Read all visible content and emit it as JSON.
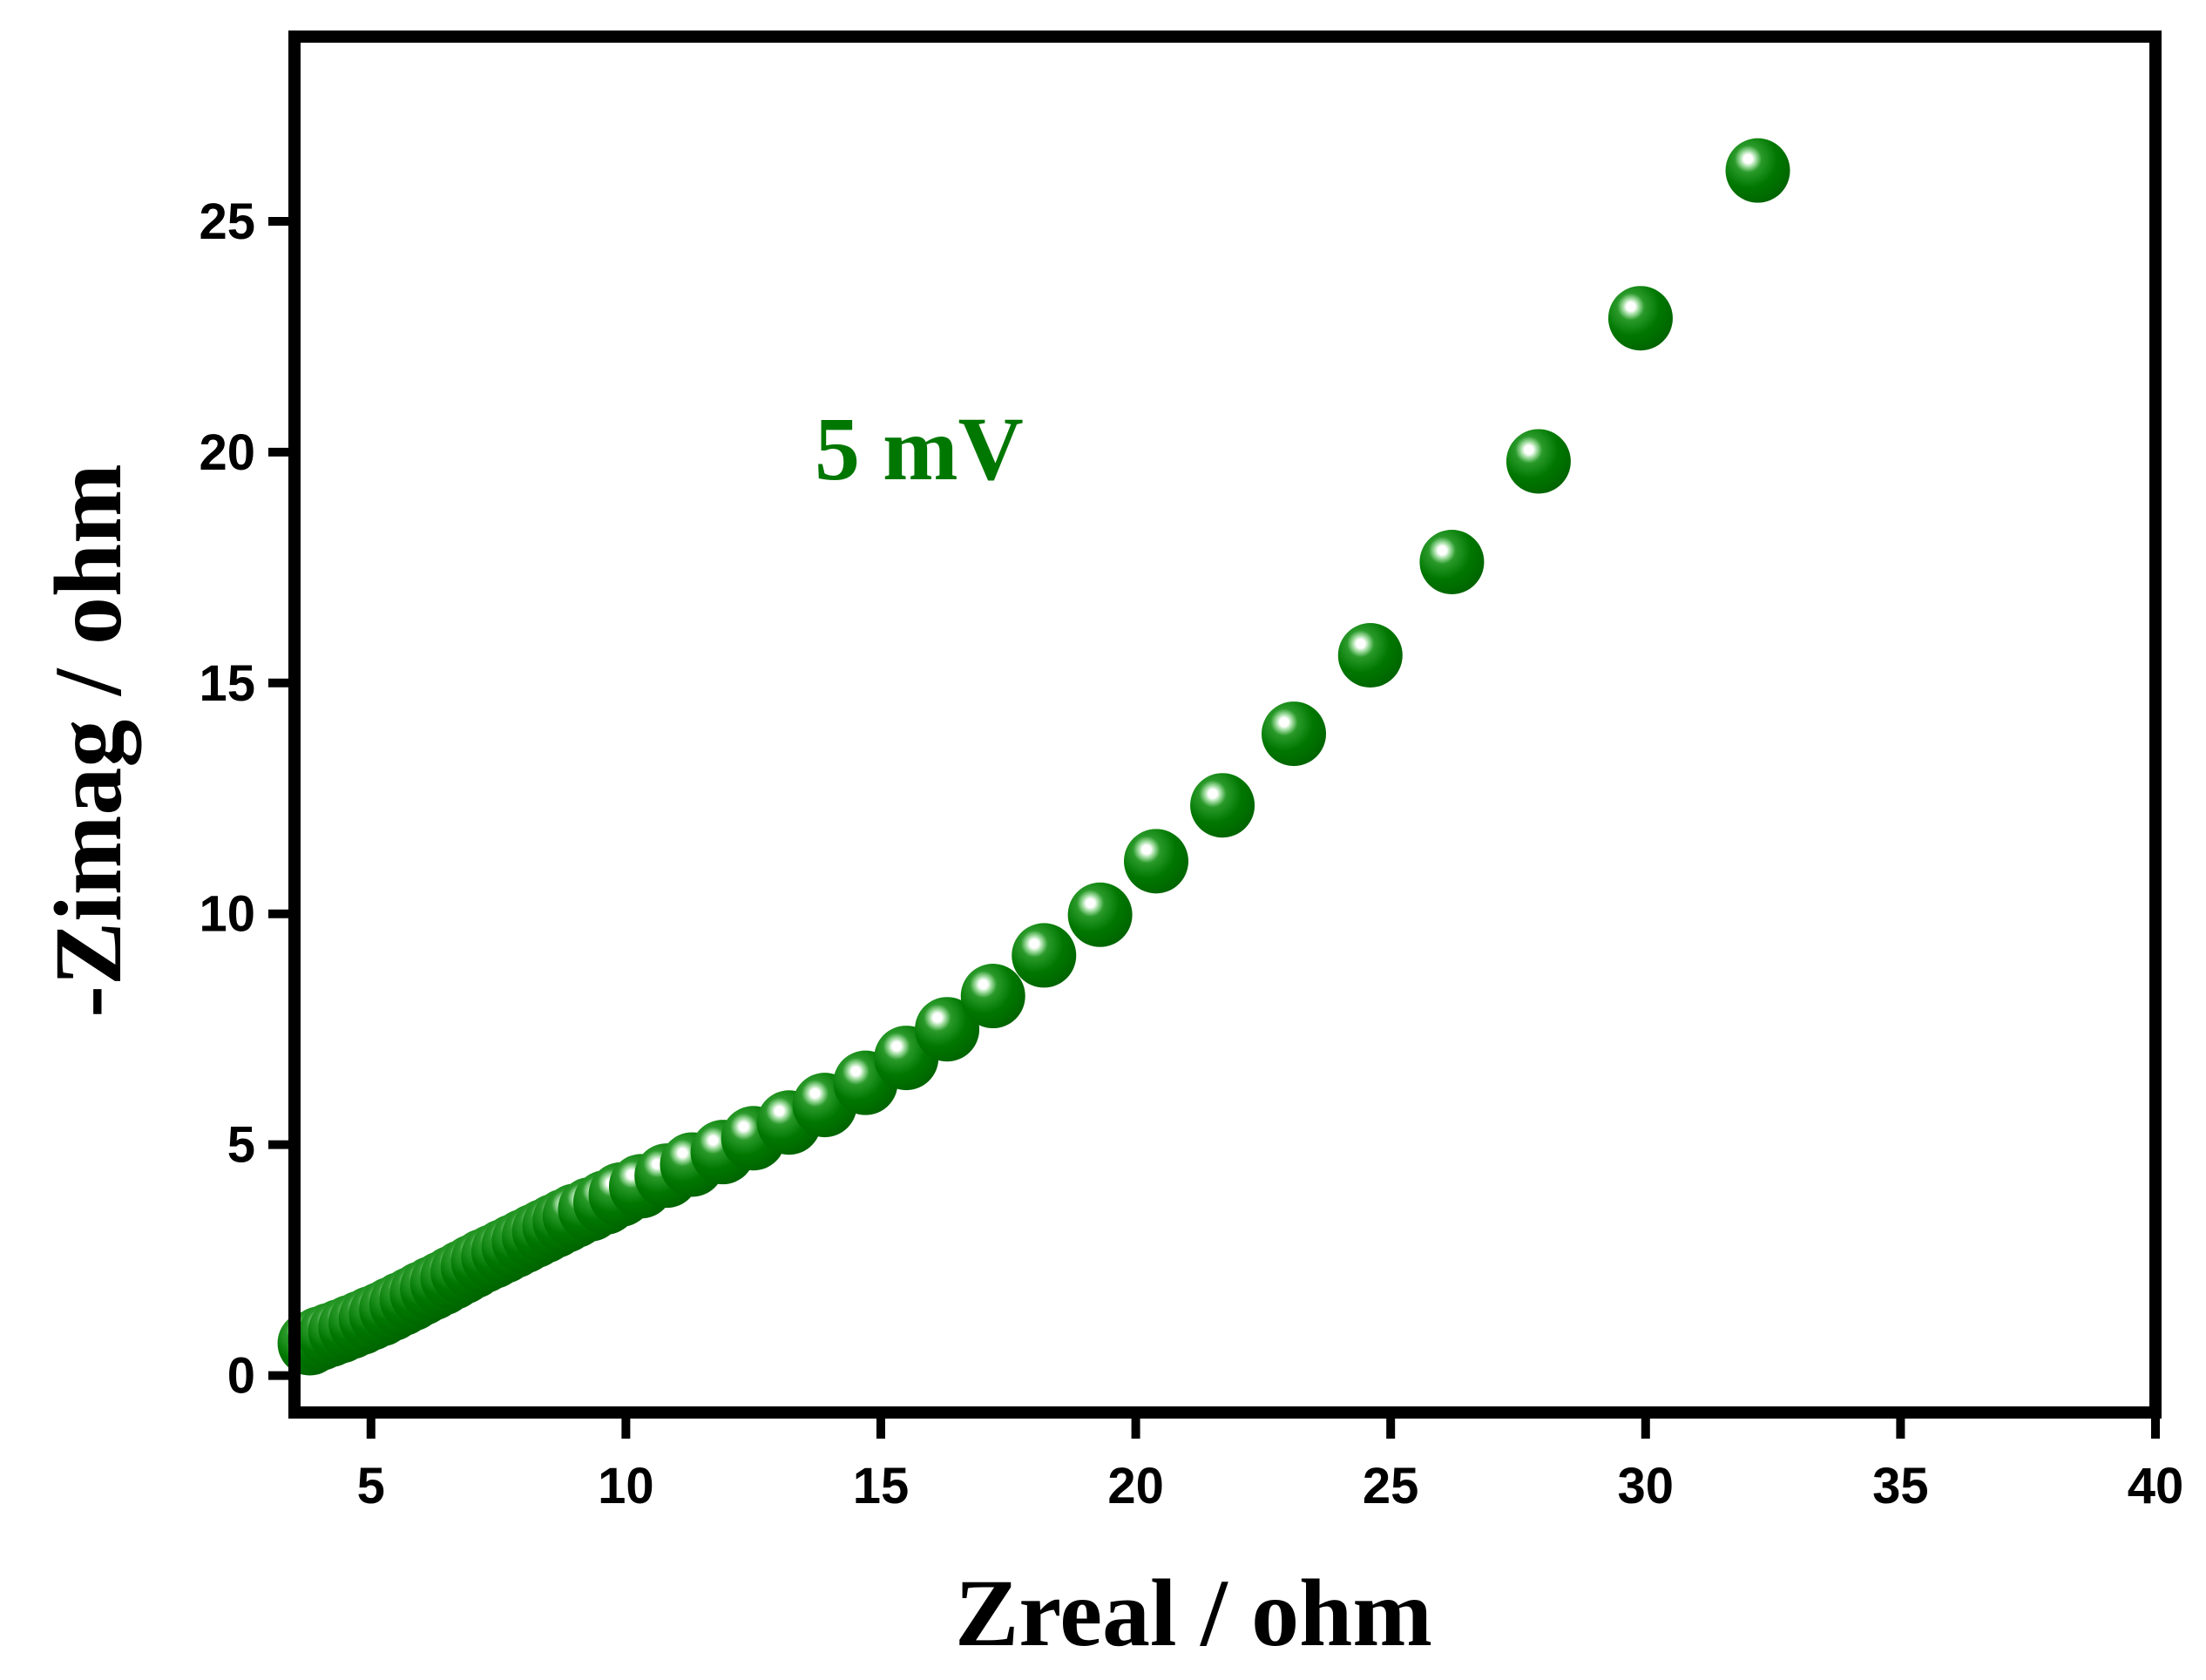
{
  "chart_data": {
    "type": "scatter",
    "title": "",
    "xlabel": "Zreal / ohm",
    "ylabel": "-Zimag / ohm",
    "xlim": [
      3.5,
      40
    ],
    "ylim": [
      -0.8,
      29
    ],
    "xticks": [
      5,
      10,
      15,
      20,
      25,
      30,
      35,
      40
    ],
    "yticks": [
      0,
      5,
      10,
      15,
      20,
      25
    ],
    "grid": false,
    "legend": "none",
    "annotation": "5 mV",
    "marker_color": "#007700",
    "highlight_color": "#a8e0a8",
    "series": [
      {
        "name": "5 mV",
        "x": [
          3.8,
          4.0,
          4.2,
          4.4,
          4.6,
          4.8,
          5.0,
          5.2,
          5.4,
          5.6,
          5.8,
          6.0,
          6.2,
          6.4,
          6.6,
          6.8,
          7.0,
          7.2,
          7.4,
          7.6,
          7.8,
          8.0,
          8.2,
          8.4,
          8.6,
          8.8,
          9.0,
          9.3,
          9.6,
          9.9,
          10.3,
          10.8,
          11.3,
          11.9,
          12.5,
          13.2,
          13.9,
          14.7,
          15.5,
          16.3,
          17.2,
          18.2,
          19.3,
          20.4,
          21.7,
          23.1,
          24.6,
          26.2,
          27.9,
          29.9,
          32.2
        ],
        "y": [
          0.7,
          0.8,
          0.88,
          0.96,
          1.05,
          1.14,
          1.24,
          1.33,
          1.44,
          1.55,
          1.66,
          1.78,
          1.89,
          2.0,
          2.12,
          2.24,
          2.36,
          2.48,
          2.58,
          2.69,
          2.8,
          2.91,
          3.02,
          3.13,
          3.24,
          3.35,
          3.46,
          3.6,
          3.75,
          3.92,
          4.1,
          4.33,
          4.57,
          4.84,
          5.14,
          5.48,
          5.86,
          6.34,
          6.88,
          7.5,
          8.22,
          9.1,
          9.98,
          11.14,
          12.35,
          13.9,
          15.6,
          17.62,
          19.8,
          22.9,
          26.1
        ]
      }
    ]
  }
}
